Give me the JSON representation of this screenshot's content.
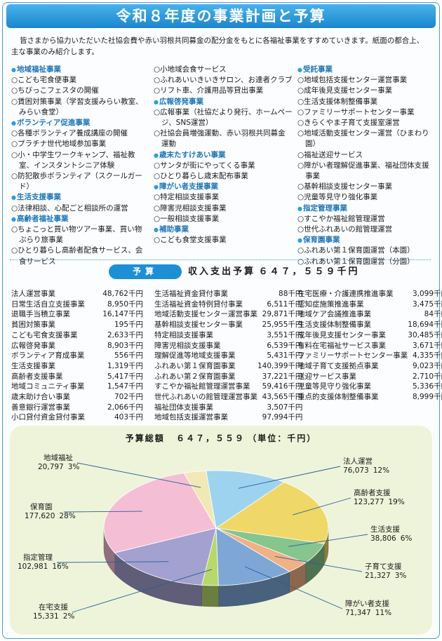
{
  "title": "令和８年度の事業計画と予算",
  "intro": "皆さまから協力いただいた社協会費や赤い羽根共同募金の配分金をもとに各福祉事業をすすめていきます。紙面の都合上、主な事業のみ紹介します。",
  "plan_columns": [
    [
      {
        "type": "h",
        "text": "地域福祉事業"
      },
      {
        "type": "i",
        "text": "○こども宅食便事業"
      },
      {
        "type": "i",
        "text": "○ちびっこフェスタの開催"
      },
      {
        "type": "i",
        "text": "○賃困対策事業（学習支援みらい教室、みらい食堂）"
      },
      {
        "type": "h",
        "text": "ボランティア促進事業"
      },
      {
        "type": "i",
        "text": "○各種ボランティア養成講座の開催"
      },
      {
        "type": "i",
        "text": "○プラチナ世代地域参加事業"
      },
      {
        "type": "i",
        "text": "○小・中学生ワークキャンプ、福祉教室、インスタントシニア体験"
      },
      {
        "type": "i",
        "text": "○防犯散歩ボランティア（スクールガード）"
      },
      {
        "type": "h",
        "text": "生活支援事業"
      },
      {
        "type": "i",
        "text": "○法律相談、心配ごと相談所の運営"
      },
      {
        "type": "h",
        "text": "高齢者福祉事業"
      },
      {
        "type": "i",
        "text": "○ちょこっと買い物ツアー事業、買い物ぶらり旅事業"
      },
      {
        "type": "i",
        "text": "○ひとり暮らし高齢者配食サービス、会食サービス"
      }
    ],
    [
      {
        "type": "i",
        "text": "○小地域会食サービス"
      },
      {
        "type": "i",
        "text": "○ふれあいいきいきサロン、お達者クラブ"
      },
      {
        "type": "i",
        "text": "○リフト車、介護用品等貸出事業"
      },
      {
        "type": "h",
        "text": "広報啓発事業"
      },
      {
        "type": "i",
        "text": "○広報事業（社協だより発行、ホームページ、SNS運営）"
      },
      {
        "type": "i",
        "text": "○社協会員増強運動、赤い羽根共同募金運動"
      },
      {
        "type": "h",
        "text": "歳末たすけあい事業"
      },
      {
        "type": "i",
        "text": "○サンタが街にやってくる事業"
      },
      {
        "type": "i",
        "text": "○ひとり暮らし歳末配布事業"
      },
      {
        "type": "h",
        "text": "障がい者支援事業"
      },
      {
        "type": "i",
        "text": "○特定相談支援事業"
      },
      {
        "type": "i",
        "text": "○障害児相談支援事業"
      },
      {
        "type": "i",
        "text": "○一般相談支援事業"
      },
      {
        "type": "h",
        "text": "補助事業"
      },
      {
        "type": "i",
        "text": "○こども食堂支援事業"
      }
    ],
    [
      {
        "type": "h",
        "text": "受託事業"
      },
      {
        "type": "i",
        "text": "○地域包括支援センター運営事業"
      },
      {
        "type": "i",
        "text": "○成年後見支援センター事業"
      },
      {
        "type": "i",
        "text": "○生活支援体制整備事業"
      },
      {
        "type": "i",
        "text": "○ファミリーサポートセンター事業"
      },
      {
        "type": "i",
        "text": "○きらくやま子育て支援室運営"
      },
      {
        "type": "i",
        "text": "○地域活動支援センター運営（ひまわり園）"
      },
      {
        "type": "i",
        "text": "○福祉送迎サービス"
      },
      {
        "type": "i",
        "text": "○障がい者理解促進事業、福祉団体支援事業"
      },
      {
        "type": "i",
        "text": "○基幹相談支援センター事業"
      },
      {
        "type": "i",
        "text": "○児童等見守り強化事業"
      },
      {
        "type": "h",
        "text": "指定管理事業"
      },
      {
        "type": "i",
        "text": "○すこやか福祉館管理運営"
      },
      {
        "type": "i",
        "text": "○世代ふれあいの館管理運営"
      },
      {
        "type": "h",
        "text": "保育園事業"
      },
      {
        "type": "i",
        "text": "○ふれあい第１保育園運営（本園）"
      },
      {
        "type": "i",
        "text": "○ふれあい第１保育園運営（分園）"
      }
    ]
  ],
  "budget": {
    "pill": "予算",
    "label": "収入支出予算",
    "amount": "６４７，５５９千円",
    "columns": [
      [
        [
          "法人運営事業",
          "48,762千円"
        ],
        [
          "日常生活自立支援事業",
          "8,950千円"
        ],
        [
          "退職手当積立事業",
          "16,147千円"
        ],
        [
          "貧困対策事業",
          "195千円"
        ],
        [
          "こども宅食支援事業",
          "2,633千円"
        ],
        [
          "広報啓発事業",
          "8,903千円"
        ],
        [
          "ボランティア育成事業",
          "556千円"
        ],
        [
          "生活支援事業",
          "1,319千円"
        ],
        [
          "高齢者支援事業",
          "5,417千円"
        ],
        [
          "地域コミュニティ事業",
          "1,547千円"
        ],
        [
          "歳末助け合い事業",
          "702千円"
        ],
        [
          "善意銀行運営事業",
          "2,066千円"
        ],
        [
          "小口貸付資金貸付事業",
          "403千円"
        ]
      ],
      [
        [
          "生活福祉資金貸付事業",
          "88千円"
        ],
        [
          "生活福祉資金特例貸付事業",
          "6,511千円"
        ],
        [
          "地域活動支援センター運営事業",
          "29,871千円"
        ],
        [
          "基幹相談支援センター事業",
          "25,955千円"
        ],
        [
          "特定相談支援事業",
          "3,551千円"
        ],
        [
          "障害児相談支援事業",
          "6,539千円"
        ],
        [
          "理解促進等地域支援事業",
          "5,431千円"
        ],
        [
          "ふれあい第１保育園事業",
          "140,399千円"
        ],
        [
          "ふれあい第２保育園事業",
          "37,221千円"
        ],
        [
          "すこやか福祉館管理運営事業",
          "59,416千円"
        ],
        [
          "世代ふれあいの館管理運営事業",
          "43,565千円"
        ],
        [
          "福祉団体支援事業",
          "3,507千円"
        ],
        [
          "地域包括支援運営事業",
          "97,994千円"
        ]
      ],
      [
        [
          "在宅医療・介護連携推進事業",
          "3,099千円"
        ],
        [
          "認知症施策推進事業",
          "3,475千円"
        ],
        [
          "地域ケア会議推進事業",
          "84千円"
        ],
        [
          "生活支援体制整備事業",
          "18,694千円"
        ],
        [
          "成年後見支援センター事業",
          "30,485千円"
        ],
        [
          "有料在宅福祉サービス事業",
          "3,671千円"
        ],
        [
          "ファミリーサポートセンター事業",
          "4,335千円"
        ],
        [
          "地域子育て支援拠点事業",
          "9,023千円"
        ],
        [
          "送迎サービス事業",
          "2,710千円"
        ],
        [
          "児童等見守り強化事業",
          "5,336千円"
        ],
        [
          "重点的支援体制整備事業",
          "8,999千円"
        ]
      ]
    ]
  },
  "pie_total": {
    "label": "予算総額",
    "amount": "６４７，５５９",
    "unit": "（単位：千円）"
  },
  "chart_data": {
    "type": "pie",
    "title": "予算総額　６４７，５５９（単位：千円）",
    "slices": [
      {
        "name": "法人運営",
        "value": 76073,
        "percent": "12%",
        "value_label": "76,073",
        "color": "#9ed3ef"
      },
      {
        "name": "高齢者支援",
        "value": 123277,
        "percent": "19%",
        "value_label": "123,277",
        "color": "#efd868"
      },
      {
        "name": "生活支援",
        "value": 38806,
        "percent": "6%",
        "value_label": "38,806",
        "color": "#86c58e"
      },
      {
        "name": "子育て支援",
        "value": 21327,
        "percent": "3%",
        "value_label": "21,327",
        "color": "#f0b185"
      },
      {
        "name": "障がい者支援",
        "value": 71347,
        "percent": "11%",
        "value_label": "71,347",
        "color": "#7ea7d5"
      },
      {
        "name": "在宅支援",
        "value": 15331,
        "percent": "2%",
        "value_label": "15,331",
        "color": "#b8d86c"
      },
      {
        "name": "指定管理",
        "value": 102981,
        "percent": "16%",
        "value_label": "102,981",
        "color": "#a3a1cf"
      },
      {
        "name": "保育園",
        "value": 177620,
        "percent": "28%",
        "value_label": "177,620",
        "color": "#f4bfd4"
      },
      {
        "name": "地域福祉",
        "value": 20797,
        "percent": "3%",
        "value_label": "20,797",
        "color": "#f1e8b6"
      }
    ]
  }
}
